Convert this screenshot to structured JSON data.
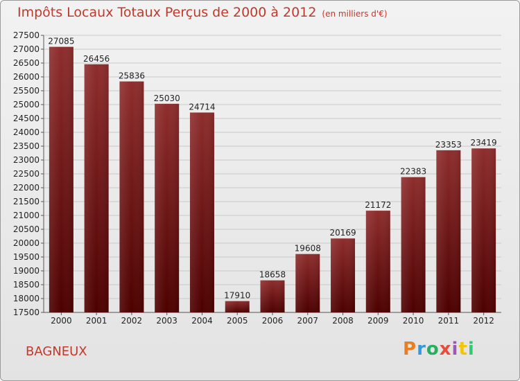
{
  "header": {
    "title": "Impôts Locaux Totaux Perçus de 2000 à 2012",
    "unit": "(en milliers d'€)"
  },
  "footer": {
    "city": "BAGNEUX",
    "logo_text": "Proxiti",
    "logo_colors": [
      "#e67e22",
      "#3498db",
      "#27ae60",
      "#e74c3c",
      "#9b59b6",
      "#f1c40f",
      "#2ecc71"
    ]
  },
  "colors": {
    "bar_top": "#8b2a2a",
    "bar_bottom": "#4a0000",
    "title": "#c0392b",
    "grid": "#c8c8c8"
  },
  "chart_data": {
    "type": "bar",
    "title": "Impôts Locaux Totaux Perçus de 2000 à 2012",
    "xlabel": "",
    "ylabel": "",
    "categories": [
      "2000",
      "2001",
      "2002",
      "2003",
      "2004",
      "2005",
      "2006",
      "2007",
      "2008",
      "2009",
      "2010",
      "2011",
      "2012"
    ],
    "values": [
      27085,
      26456,
      25836,
      25030,
      24714,
      17910,
      18658,
      19608,
      20169,
      21172,
      22383,
      23353,
      23419
    ],
    "ylim": [
      17500,
      27500
    ],
    "yticks": [
      17500,
      18000,
      18500,
      19000,
      19500,
      20000,
      20500,
      21000,
      21500,
      22000,
      22500,
      23000,
      23500,
      24000,
      24500,
      25000,
      25500,
      26000,
      26500,
      27000,
      27500
    ],
    "grid": true
  }
}
